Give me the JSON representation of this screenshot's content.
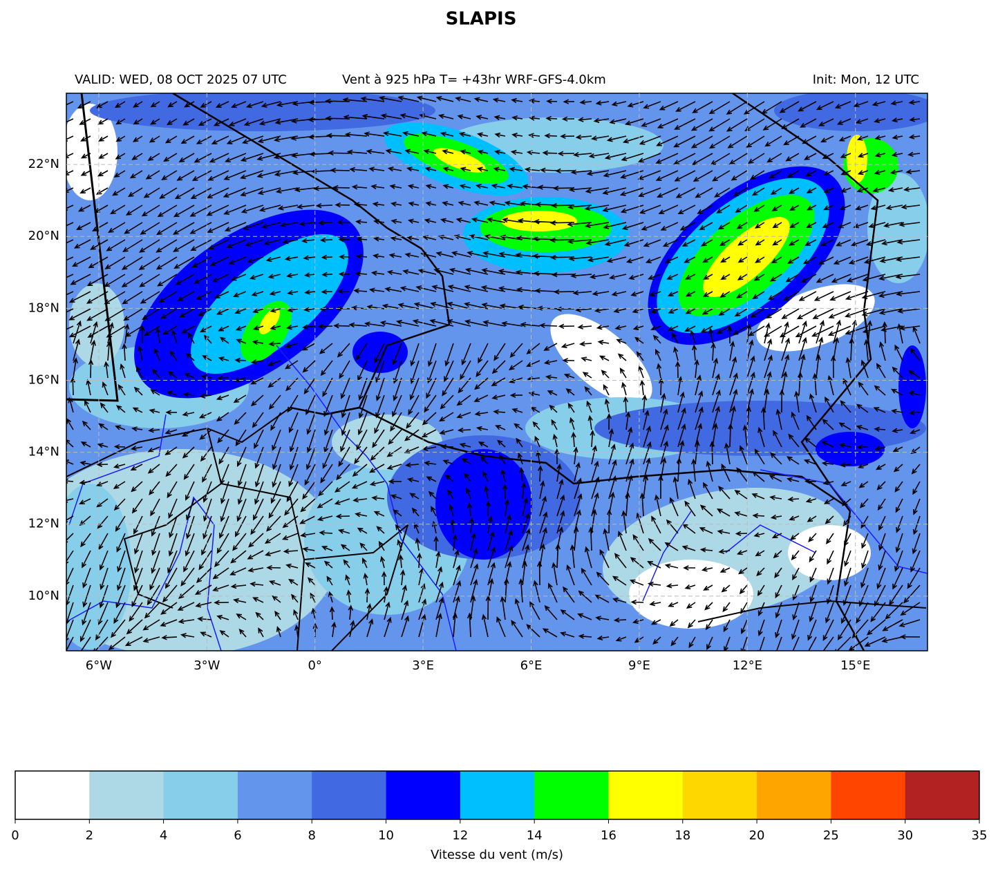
{
  "title": "SLAPIS",
  "header": {
    "left": "VALID: WED, 08 OCT 2025 07 UTC",
    "center": "Vent à 925 hPa T= +43hr  WRF-GFS-4.0km",
    "right": "Init: Mon, 12 UTC"
  },
  "map": {
    "lonlim": [
      -6.9,
      17.0
    ],
    "latlim": [
      8.48,
      23.98
    ],
    "lon_ticks": [
      {
        "value": -6,
        "label": "6°W"
      },
      {
        "value": -3,
        "label": "3°W"
      },
      {
        "value": 0,
        "label": "0°"
      },
      {
        "value": 3,
        "label": "3°E"
      },
      {
        "value": 6,
        "label": "6°E"
      },
      {
        "value": 9,
        "label": "9°E"
      },
      {
        "value": 12,
        "label": "12°E"
      },
      {
        "value": 15,
        "label": "15°E"
      }
    ],
    "lat_ticks": [
      {
        "value": 10,
        "label": "10°N"
      },
      {
        "value": 12,
        "label": "12°N"
      },
      {
        "value": 14,
        "label": "14°N"
      },
      {
        "value": 16,
        "label": "16°N"
      },
      {
        "value": 18,
        "label": "18°N"
      },
      {
        "value": 20,
        "label": "20°N"
      },
      {
        "value": 22,
        "label": "22°N"
      }
    ]
  },
  "colorbar": {
    "label": "Vitesse du vent (m/s)",
    "bounds": [
      0,
      2,
      4,
      6,
      8,
      10,
      12,
      14,
      16,
      18,
      20,
      25,
      30,
      35
    ],
    "colors": [
      "#ffffff",
      "#add8e6",
      "#87ceeb",
      "#6495ed",
      "#4169e1",
      "#0000ff",
      "#00bfff",
      "#00ff00",
      "#ffff00",
      "#ffd700",
      "#ffa500",
      "#ff4500",
      "#b22222"
    ]
  }
}
